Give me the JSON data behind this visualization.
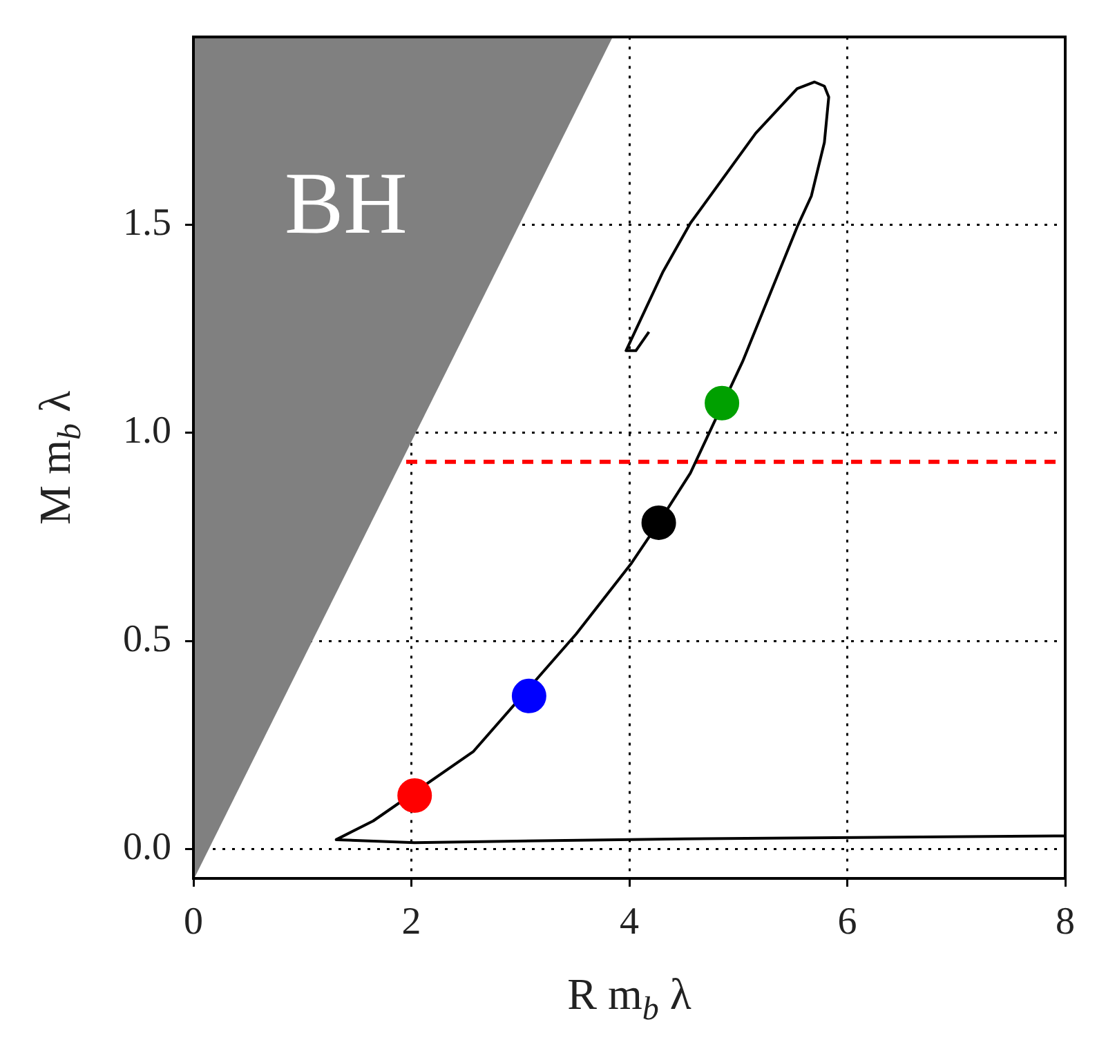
{
  "chart_data": {
    "type": "line",
    "xlabel": "R m$_{b}$ λ",
    "ylabel": "M m$_{b}$ λ",
    "xlim": [
      0,
      8
    ],
    "ylim": [
      -0.07,
      1.95
    ],
    "xticks": [
      0,
      2,
      4,
      6,
      8
    ],
    "yticks": [
      {
        "value": 0,
        "label": "0.0"
      },
      {
        "value": 0.5,
        "label": "0.5"
      },
      {
        "value": 1,
        "label": "1.0"
      },
      {
        "value": 1.5,
        "label": "1.5"
      }
    ],
    "grid": true,
    "legend": false,
    "line_style": "solid",
    "marker": "none",
    "ref_lines": [
      {
        "axis": "y",
        "value": 0.93,
        "color": "#ff0000",
        "line_style": "dashed"
      }
    ],
    "annotations": [
      "BH"
    ],
    "series": [
      {
        "type": "area",
        "color": "#808080",
        "x": [
          0,
          3.84
        ],
        "values": [
          -0.07,
          1.95
        ]
      },
      {
        "type": "line",
        "color": "#000000",
        "x": [
          8.0,
          4.5,
          2.03,
          1.31,
          1.65,
          2.57,
          3.51,
          4.02,
          4.27,
          4.56,
          5.04,
          5.54,
          5.67,
          5.79,
          5.83,
          5.79,
          5.7,
          5.54,
          5.16,
          4.56,
          4.31,
          3.97,
          4.06,
          4.18
        ],
        "values": [
          0.032,
          0.025,
          0.016,
          0.023,
          0.068,
          0.235,
          0.516,
          0.687,
          0.784,
          0.903,
          1.171,
          1.494,
          1.568,
          1.697,
          1.806,
          1.832,
          1.842,
          1.826,
          1.719,
          1.503,
          1.387,
          1.197,
          1.197,
          1.242
        ]
      },
      {
        "type": "scatter",
        "marker": "circle",
        "x": [
          2.03,
          3.08,
          4.27,
          4.85
        ],
        "values": [
          0.129,
          0.368,
          0.784,
          1.071
        ],
        "colors": [
          "#ff0000",
          "#0000ff",
          "#000000",
          "#00a000"
        ]
      }
    ]
  }
}
